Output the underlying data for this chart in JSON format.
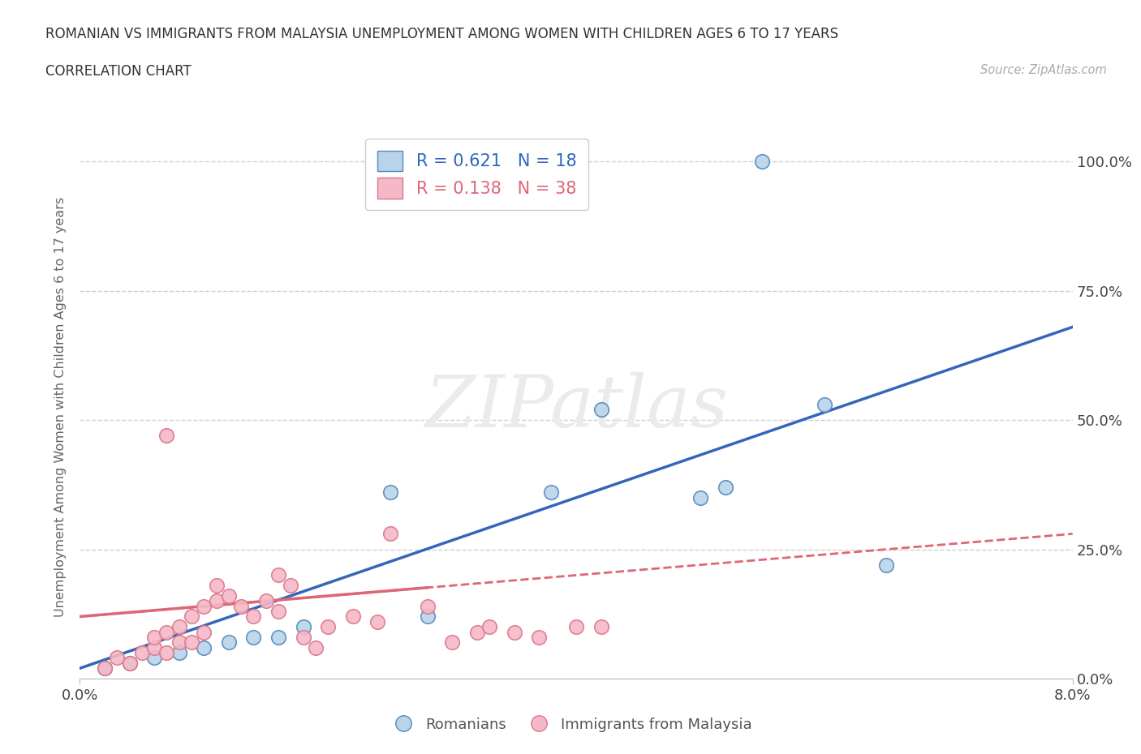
{
  "title_line1": "ROMANIAN VS IMMIGRANTS FROM MALAYSIA UNEMPLOYMENT AMONG WOMEN WITH CHILDREN AGES 6 TO 17 YEARS",
  "title_line2": "CORRELATION CHART",
  "source": "Source: ZipAtlas.com",
  "ylabel": "Unemployment Among Women with Children Ages 6 to 17 years",
  "xlim": [
    0.0,
    0.08
  ],
  "ylim": [
    0.0,
    1.05
  ],
  "ytick_vals": [
    0.0,
    0.25,
    0.5,
    0.75,
    1.0
  ],
  "ytick_labels": [
    "0.0%",
    "25.0%",
    "50.0%",
    "75.0%",
    "100.0%"
  ],
  "xtick_labels": [
    "0.0%",
    "8.0%"
  ],
  "grid_color": "#d0d0d0",
  "background_color": "#ffffff",
  "romanian_color": "#b8d4ea",
  "romanian_edge": "#5588bb",
  "romanian_R": 0.621,
  "romanian_N": 18,
  "romanian_line_color": "#3366bb",
  "malaysia_color": "#f4b8c8",
  "malaysia_edge": "#dd7788",
  "malaysia_R": 0.138,
  "malaysia_N": 38,
  "malaysia_line_color": "#dd6677",
  "romanian_x": [
    0.002,
    0.004,
    0.006,
    0.008,
    0.01,
    0.012,
    0.014,
    0.016,
    0.018,
    0.025,
    0.028,
    0.038,
    0.042,
    0.05,
    0.052,
    0.06,
    0.065,
    0.055
  ],
  "romanian_y": [
    0.02,
    0.03,
    0.04,
    0.05,
    0.06,
    0.07,
    0.08,
    0.08,
    0.1,
    0.36,
    0.12,
    0.36,
    0.52,
    0.35,
    0.37,
    0.53,
    0.22,
    1.0
  ],
  "malaysia_x": [
    0.002,
    0.003,
    0.004,
    0.005,
    0.006,
    0.006,
    0.007,
    0.007,
    0.008,
    0.008,
    0.009,
    0.009,
    0.01,
    0.01,
    0.011,
    0.011,
    0.012,
    0.013,
    0.014,
    0.015,
    0.016,
    0.016,
    0.017,
    0.018,
    0.019,
    0.02,
    0.022,
    0.024,
    0.025,
    0.028,
    0.03,
    0.032,
    0.033,
    0.035,
    0.037,
    0.04,
    0.042,
    0.007
  ],
  "malaysia_y": [
    0.02,
    0.04,
    0.03,
    0.05,
    0.06,
    0.08,
    0.05,
    0.09,
    0.07,
    0.1,
    0.07,
    0.12,
    0.09,
    0.14,
    0.15,
    0.18,
    0.16,
    0.14,
    0.12,
    0.15,
    0.13,
    0.2,
    0.18,
    0.08,
    0.06,
    0.1,
    0.12,
    0.11,
    0.28,
    0.14,
    0.07,
    0.09,
    0.1,
    0.09,
    0.08,
    0.1,
    0.1,
    0.47
  ],
  "romanian_line_x": [
    0.0,
    0.08
  ],
  "romanian_line_y": [
    0.02,
    0.68
  ],
  "malaysia_line_x": [
    0.0,
    0.08
  ],
  "malaysia_line_y": [
    0.12,
    0.28
  ]
}
